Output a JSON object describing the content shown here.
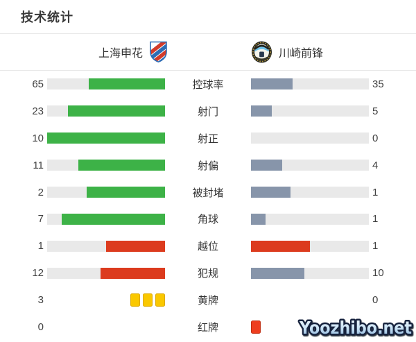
{
  "title": "技术统计",
  "teams": {
    "home": {
      "name": "上海申花"
    },
    "away": {
      "name": "川崎前锋"
    }
  },
  "watermark": "Yoozhibo.net",
  "colors": {
    "green": "#3db247",
    "slate": "#8795aa",
    "red": "#dc3b1e",
    "track": "#e9e9e9",
    "yellow_card": "#fac800",
    "yellow_card_border": "#dca800",
    "red_card": "#ee3e1f",
    "red_card_border": "#c12e12"
  },
  "chart_data": {
    "type": "bar",
    "layout": "mirrored-horizontal-comparison",
    "title": "技术统计",
    "teams": [
      "上海申花",
      "川崎前锋"
    ],
    "categories": [
      "控球率",
      "射门",
      "射正",
      "射偏",
      "被封堵",
      "角球",
      "越位",
      "犯规",
      "黄牌",
      "红牌"
    ],
    "series": [
      {
        "name": "上海申花",
        "values": [
          65,
          23,
          10,
          11,
          2,
          7,
          1,
          12,
          3,
          0
        ]
      },
      {
        "name": "川崎前锋",
        "values": [
          35,
          5,
          0,
          4,
          1,
          1,
          1,
          10,
          0,
          1
        ]
      }
    ],
    "rows": [
      {
        "label": "控球率",
        "display": "bar",
        "home": {
          "value": 65,
          "color": "green"
        },
        "away": {
          "value": 35,
          "color": "slate"
        }
      },
      {
        "label": "射门",
        "display": "bar",
        "home": {
          "value": 23,
          "color": "green"
        },
        "away": {
          "value": 5,
          "color": "slate"
        }
      },
      {
        "label": "射正",
        "display": "bar",
        "home": {
          "value": 10,
          "color": "green"
        },
        "away": {
          "value": 0,
          "color": "slate"
        }
      },
      {
        "label": "射偏",
        "display": "bar",
        "home": {
          "value": 11,
          "color": "green"
        },
        "away": {
          "value": 4,
          "color": "slate"
        }
      },
      {
        "label": "被封堵",
        "display": "bar",
        "home": {
          "value": 2,
          "color": "green"
        },
        "away": {
          "value": 1,
          "color": "slate"
        }
      },
      {
        "label": "角球",
        "display": "bar",
        "home": {
          "value": 7,
          "color": "green"
        },
        "away": {
          "value": 1,
          "color": "slate"
        }
      },
      {
        "label": "越位",
        "display": "bar",
        "home": {
          "value": 1,
          "color": "red"
        },
        "away": {
          "value": 1,
          "color": "red"
        }
      },
      {
        "label": "犯规",
        "display": "bar",
        "home": {
          "value": 12,
          "color": "red"
        },
        "away": {
          "value": 10,
          "color": "slate"
        }
      },
      {
        "label": "黄牌",
        "display": "cards",
        "card": "yellow",
        "home": {
          "value": 3
        },
        "away": {
          "value": 0
        }
      },
      {
        "label": "红牌",
        "display": "cards",
        "card": "red",
        "home": {
          "value": 0
        },
        "away": {
          "value": 1
        }
      }
    ]
  }
}
